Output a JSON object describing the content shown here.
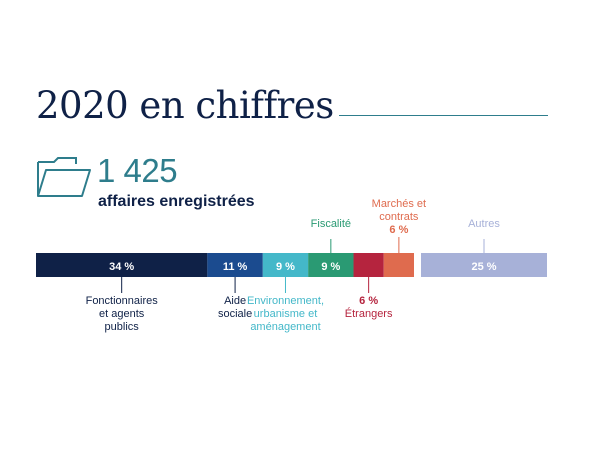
{
  "title": "2020 en chiffres",
  "summary": {
    "count": "1 425",
    "label": "affaires enregistrées",
    "icon": "folder-icon"
  },
  "chart_data": {
    "type": "bar",
    "orientation": "horizontal-stacked",
    "unit": "%",
    "series": [
      {
        "name": "Fonctionnaires\net agents\npublics",
        "value": 34,
        "value_label": "34 %",
        "color": "#0f2147",
        "label_position": "below",
        "value_inside": true
      },
      {
        "name": "Aide\nsociale",
        "value": 11,
        "value_label": "11 %",
        "color": "#1b4b8f",
        "label_position": "below",
        "value_inside": true
      },
      {
        "name": "Environnement,\nurbanisme et\naménagement",
        "value": 9,
        "value_label": "9 %",
        "color": "#44b8c9",
        "label_position": "below",
        "value_inside": true
      },
      {
        "name": "Fiscalité",
        "value": 9,
        "value_label": "9 %",
        "color": "#2a9a73",
        "label_position": "above",
        "value_inside": true
      },
      {
        "name": "Étrangers",
        "value": 6,
        "value_label": "6 %",
        "color": "#b5243e",
        "label_position": "below",
        "value_inside": false
      },
      {
        "name": "Marchés et\ncontrats",
        "value": 6,
        "value_label": "6 %",
        "color": "#df6b4e",
        "label_position": "above",
        "value_inside": false
      },
      {
        "name": "Autres",
        "value": 25,
        "value_label": "25 %",
        "color": "#a7b1d8",
        "label_position": "above",
        "value_inside": true
      }
    ]
  }
}
